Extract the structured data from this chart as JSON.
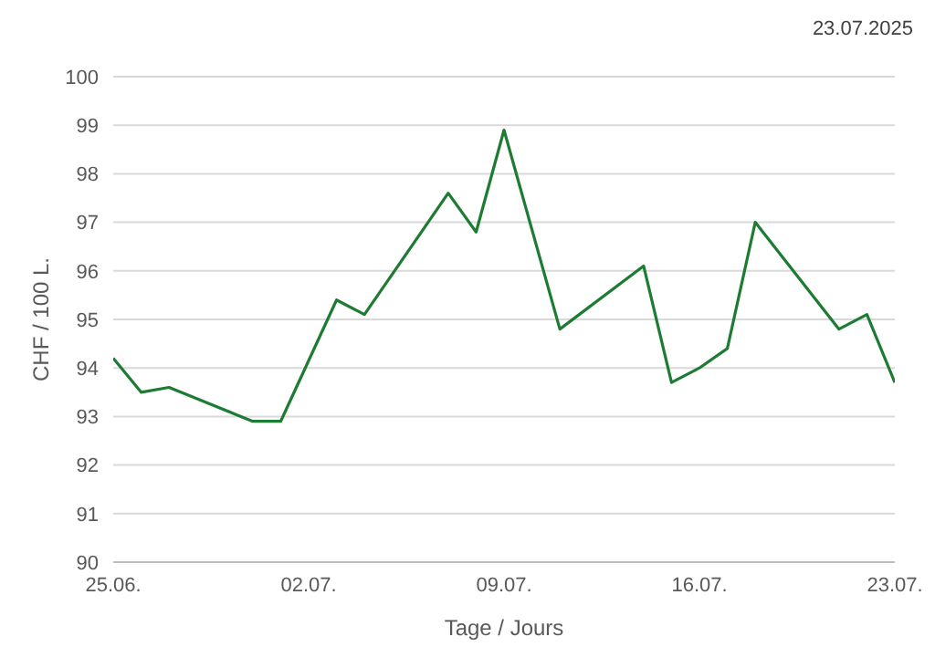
{
  "chart_data": {
    "type": "line",
    "xlabel": "Tage / Jours",
    "ylabel": "CHF / 100 L.",
    "annotations": [
      "23.07.2025"
    ],
    "x": [
      "2025-06-25",
      "2025-06-26",
      "2025-06-27",
      "2025-06-30",
      "2025-07-01",
      "2025-07-03",
      "2025-07-04",
      "2025-07-07",
      "2025-07-08",
      "2025-07-09",
      "2025-07-11",
      "2025-07-14",
      "2025-07-15",
      "2025-07-16",
      "2025-07-17",
      "2025-07-18",
      "2025-07-21",
      "2025-07-22",
      "2025-07-23"
    ],
    "series": [
      {
        "color": "#1e7b34",
        "values": [
          94.2,
          93.5,
          93.6,
          92.9,
          92.9,
          95.4,
          95.1,
          97.6,
          96.8,
          98.9,
          94.8,
          96.1,
          93.7,
          94.0,
          94.4,
          97.0,
          94.8,
          95.1,
          93.7
        ]
      }
    ],
    "xlim": [
      "2025-06-25",
      "2025-07-23"
    ],
    "xticks": [
      {
        "value": "2025-06-25",
        "label": "25.06."
      },
      {
        "value": "2025-07-02",
        "label": "02.07."
      },
      {
        "value": "2025-07-09",
        "label": "09.07."
      },
      {
        "value": "2025-07-16",
        "label": "16.07."
      },
      {
        "value": "2025-07-23",
        "label": "23.07."
      }
    ],
    "ylim": [
      90,
      100
    ],
    "yticks": [
      90,
      91,
      92,
      93,
      94,
      95,
      96,
      97,
      98,
      99,
      100
    ],
    "grid": "y",
    "legend": false,
    "marker": "none",
    "line_style": "solid"
  }
}
